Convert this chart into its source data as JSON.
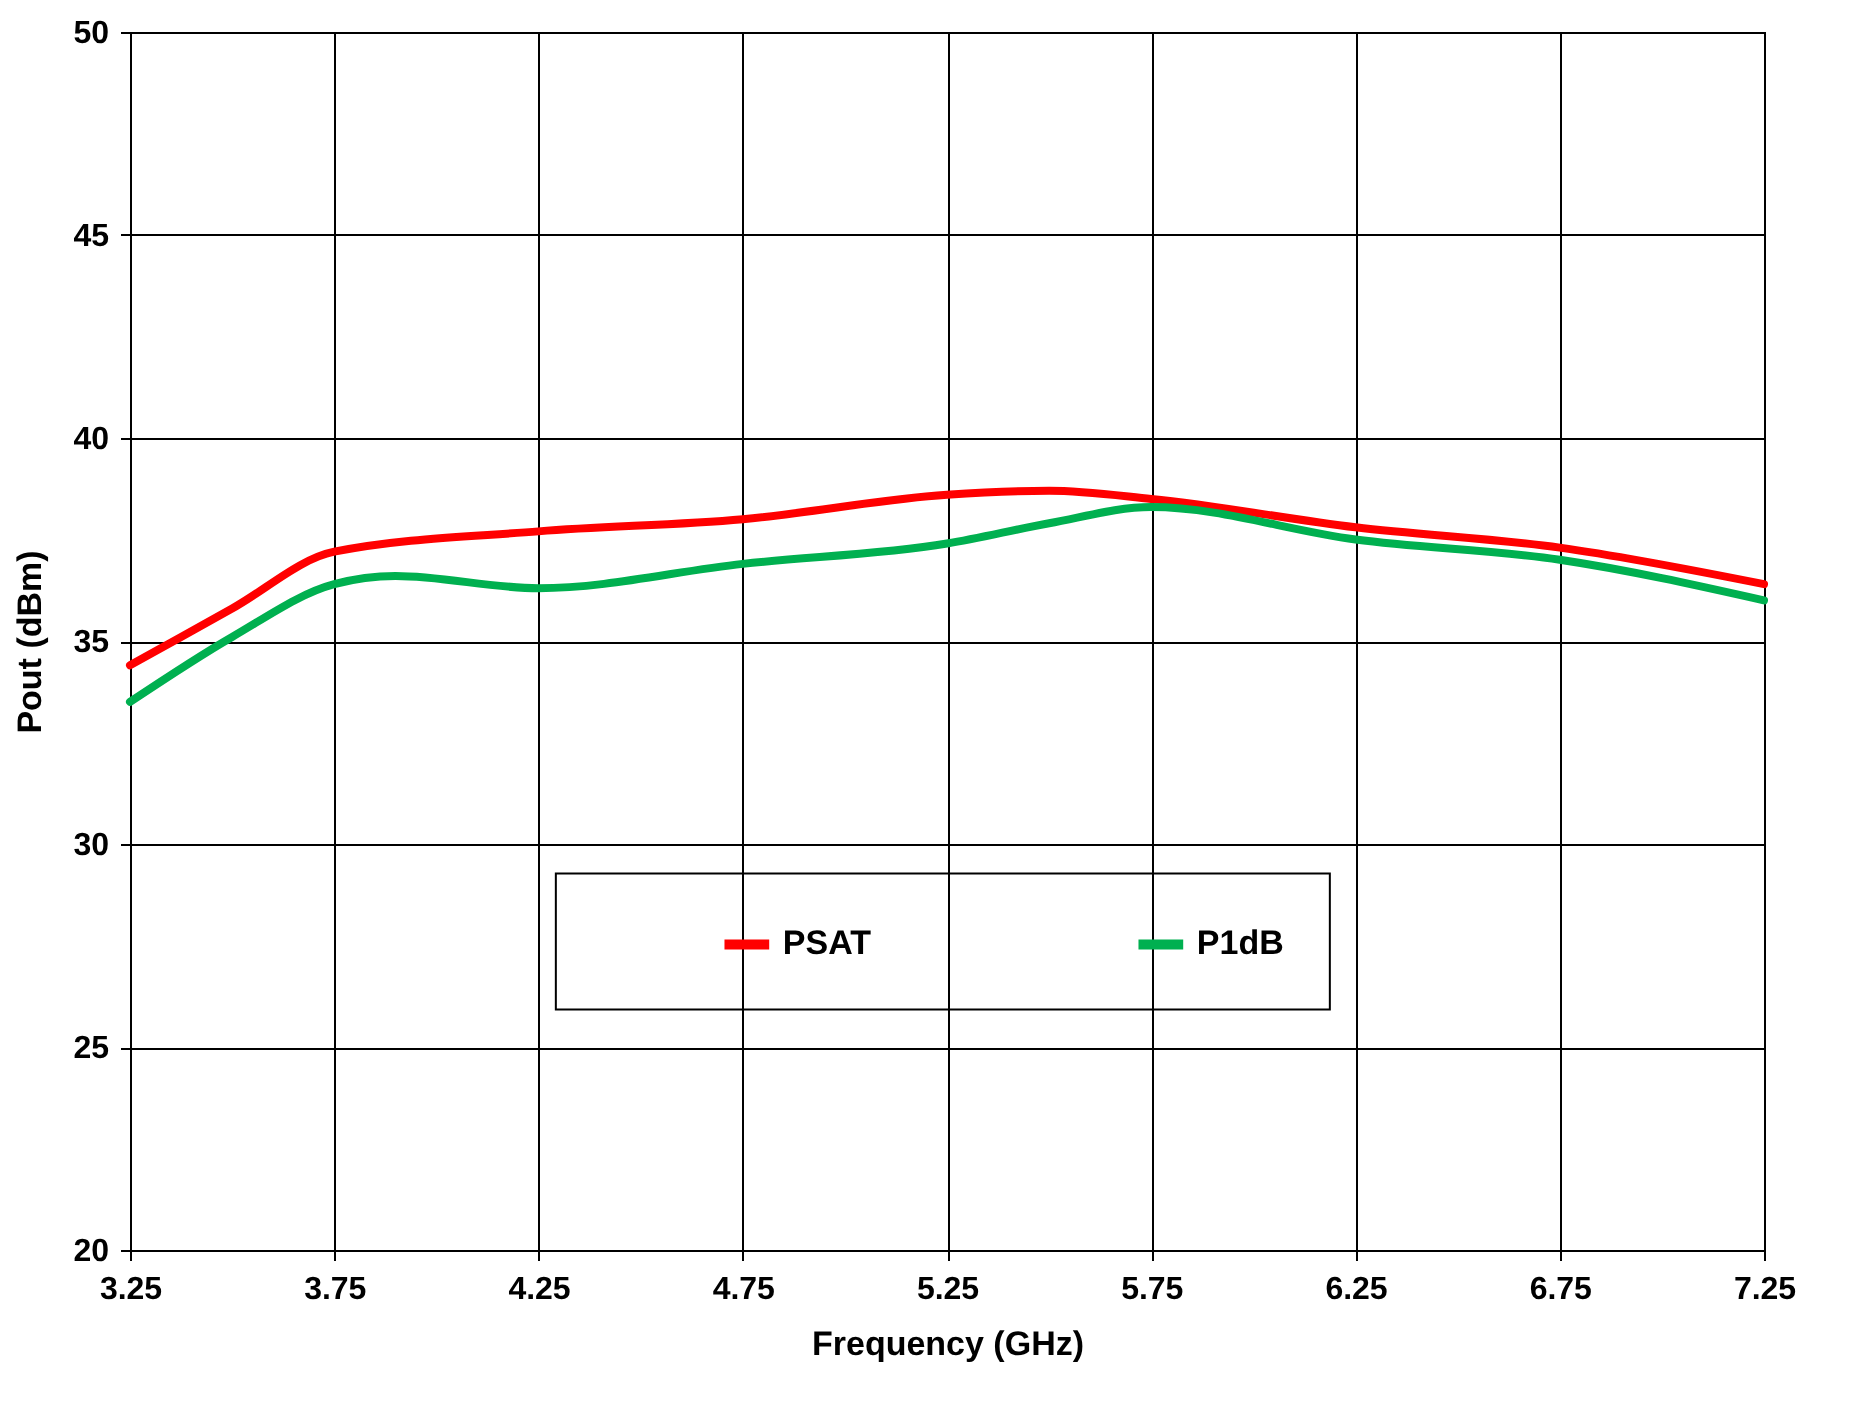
{
  "chart_data": {
    "type": "line",
    "xlabel": "Frequency (GHz)",
    "ylabel": "Pout (dBm)",
    "xlim": [
      3.25,
      7.25
    ],
    "xticks": [
      3.25,
      3.75,
      4.25,
      4.75,
      5.25,
      5.75,
      6.25,
      6.75,
      7.25
    ],
    "ylim": [
      20,
      50
    ],
    "yticks": [
      20,
      25,
      30,
      35,
      40,
      45,
      50
    ],
    "grid": true,
    "legend": "bottom",
    "marker": "none",
    "line_style": "solid",
    "series": [
      {
        "name": "PSAT",
        "color": "#ff0000",
        "x": [
          3.25,
          3.5,
          3.75,
          4.25,
          4.75,
          5.25,
          5.5,
          5.75,
          6.25,
          6.75,
          7.25
        ],
        "values": [
          34.4,
          35.8,
          37.2,
          37.7,
          38.0,
          38.6,
          38.7,
          38.5,
          37.8,
          37.3,
          36.4
        ]
      },
      {
        "name": "P1dB",
        "color": "#00b050",
        "x": [
          3.25,
          3.5,
          3.75,
          3.9,
          4.25,
          4.75,
          5.25,
          5.5,
          5.75,
          6.25,
          6.75,
          7.25
        ],
        "values": [
          33.5,
          35.1,
          36.4,
          36.6,
          36.3,
          36.9,
          37.4,
          37.9,
          38.3,
          37.5,
          37.0,
          36.0
        ]
      }
    ]
  }
}
